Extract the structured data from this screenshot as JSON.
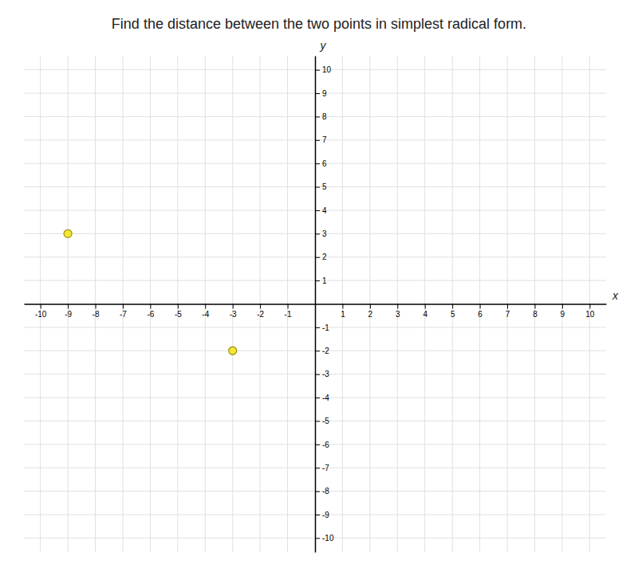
{
  "chart_data": {
    "type": "scatter",
    "title": "Find the distance between the two points in simplest radical form.",
    "xlabel": "x",
    "ylabel": "y",
    "x": [
      -9,
      -3
    ],
    "values": [
      3,
      -2
    ],
    "color": "#f5e630",
    "xlim": [
      -10.6,
      10.6
    ],
    "ylim": [
      -10.6,
      10.6
    ],
    "xticks": [
      -10,
      -9,
      -8,
      -7,
      -6,
      -5,
      -4,
      -3,
      -2,
      -1,
      1,
      2,
      3,
      4,
      5,
      6,
      7,
      8,
      9,
      10
    ],
    "yticks": [
      -10,
      -9,
      -8,
      -7,
      -6,
      -5,
      -4,
      -3,
      -2,
      -1,
      1,
      2,
      3,
      4,
      5,
      6,
      7,
      8,
      9,
      10
    ],
    "grid": true
  }
}
